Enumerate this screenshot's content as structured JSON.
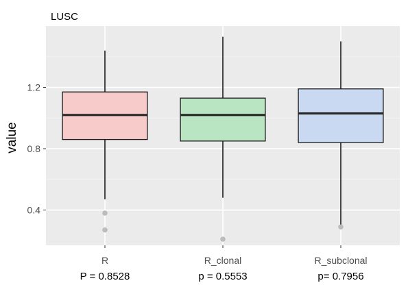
{
  "chart_data": {
    "type": "box",
    "title": "LUSC",
    "xlabel": "",
    "ylabel": "value",
    "ylim": [
      0.17,
      1.6
    ],
    "yticks": [
      0.4,
      0.8,
      1.2
    ],
    "ytick_labels": [
      "0.4",
      "0.8",
      "1.2"
    ],
    "categories": [
      "R",
      "R_clonal",
      "R_subclonal"
    ],
    "boxes": [
      {
        "category": "R",
        "whisker_low": 0.47,
        "q1": 0.86,
        "median": 1.02,
        "q3": 1.17,
        "whisker_high": 1.44,
        "outliers": [
          0.38,
          0.27
        ],
        "fill": "#f8cbcb"
      },
      {
        "category": "R_clonal",
        "whisker_low": 0.48,
        "q1": 0.85,
        "median": 1.02,
        "q3": 1.13,
        "whisker_high": 1.53,
        "outliers": [
          0.21
        ],
        "fill": "#b9e5c2"
      },
      {
        "category": "R_subclonal",
        "whisker_low": 0.3,
        "q1": 0.84,
        "median": 1.03,
        "q3": 1.19,
        "whisker_high": 1.5,
        "outliers": [
          0.29
        ],
        "fill": "#c8d9f1"
      }
    ],
    "pvalues": [
      "P = 0.8528",
      "p = 0.5553",
      "p= 0.7956"
    ],
    "panel_background": "#ebebeb",
    "grid": true,
    "legend": "none"
  }
}
